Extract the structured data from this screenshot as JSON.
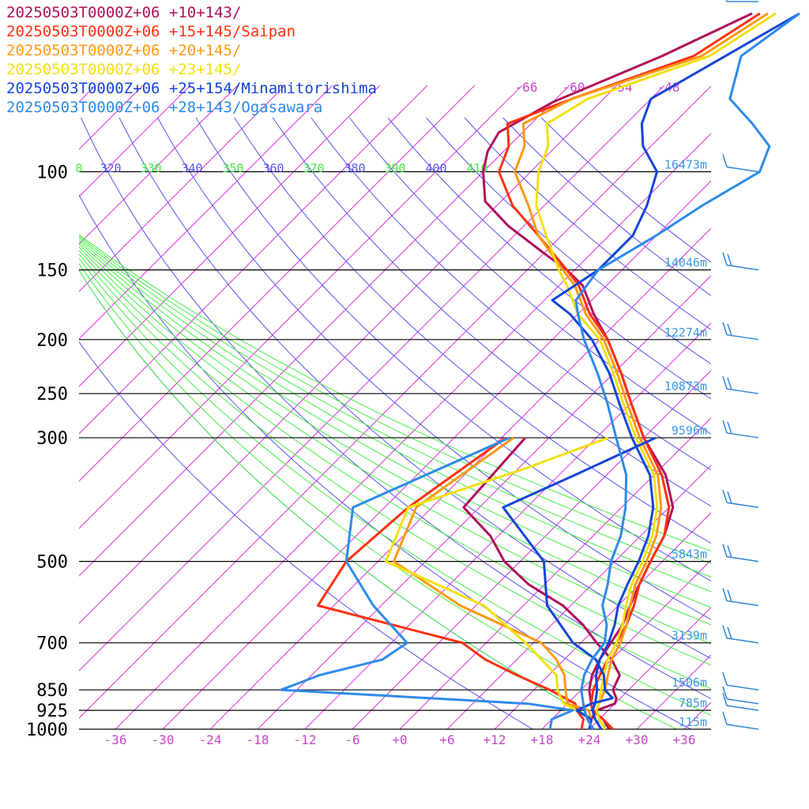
{
  "chart_data": {
    "type": "line",
    "title": "",
    "xlabel": "",
    "ylabel": "",
    "x_ticks": [
      "-36",
      "-30",
      "-24",
      "-18",
      "-12",
      "-6",
      "+0",
      "+6",
      "+12",
      "+18",
      "+24",
      "+30",
      "+36"
    ],
    "x_tick_values": [
      -36,
      -30,
      -24,
      -18,
      -12,
      -6,
      0,
      6,
      12,
      18,
      24,
      30,
      36
    ],
    "p_levels": [
      {
        "p": 100,
        "label": "100",
        "height": "16473m"
      },
      {
        "p": 150,
        "label": "150",
        "height": "14046m"
      },
      {
        "p": 200,
        "label": "200",
        "height": "12274m"
      },
      {
        "p": 250,
        "label": "250",
        "height": "10873m"
      },
      {
        "p": 300,
        "label": "300",
        "height": "9596m"
      },
      {
        "p": 500,
        "label": "500",
        "height": "5843m"
      },
      {
        "p": 700,
        "label": "700",
        "height": "3139m"
      },
      {
        "p": 850,
        "label": "850",
        "height": "1506m"
      },
      {
        "p": 925,
        "label": "925",
        "height": "785m"
      },
      {
        "p": 1000,
        "label": "1000",
        "height": "115m"
      }
    ],
    "theta_labels": [
      "0",
      "320",
      "330",
      "340",
      "350",
      "360",
      "370",
      "380",
      "390",
      "400",
      "410"
    ],
    "skewed_temp_labels": [
      "-66",
      "-60",
      "-54",
      "-48"
    ],
    "colors": {
      "background": "#ffffff",
      "isobar": "#000000",
      "isotherm": "#dd33dd",
      "dry_adiabat": "#5555ee",
      "moist_adiabat": "#44ee44",
      "height_label": "#3a9ae8",
      "axis_tick": "#cc44cc",
      "barb": "#2d86d8"
    },
    "series": [
      {
        "name": "20250503T0000Z+06 +10+143/",
        "color": "#b0105a",
        "temp": [
          [
            1000,
            26.5
          ],
          [
            960,
            24.5
          ],
          [
            925,
            22
          ],
          [
            900,
            21
          ],
          [
            850,
            19
          ],
          [
            800,
            17.5
          ],
          [
            750,
            16.5
          ],
          [
            700,
            15.8
          ],
          [
            650,
            15
          ],
          [
            600,
            13.5
          ],
          [
            550,
            12
          ],
          [
            500,
            10.5
          ],
          [
            450,
            9
          ],
          [
            400,
            6.5
          ],
          [
            350,
            1.5
          ],
          [
            300,
            -6
          ],
          [
            260,
            -12
          ],
          [
            230,
            -17
          ],
          [
            200,
            -23
          ],
          [
            180,
            -28
          ],
          [
            160,
            -33
          ],
          [
            150,
            -37
          ],
          [
            140,
            -42
          ],
          [
            125,
            -50
          ],
          [
            113,
            -56
          ],
          [
            100,
            -60
          ],
          [
            92,
            -62
          ],
          [
            85,
            -63
          ],
          [
            75,
            -60
          ],
          [
            62,
            -52
          ],
          [
            52,
            -46
          ]
        ],
        "dew": [
          [
            1000,
            24
          ],
          [
            960,
            23
          ],
          [
            925,
            22.5
          ],
          [
            900,
            24
          ],
          [
            880,
            23.5
          ],
          [
            850,
            22
          ],
          [
            800,
            21
          ],
          [
            750,
            18
          ],
          [
            700,
            14
          ],
          [
            650,
            10
          ],
          [
            600,
            5
          ],
          [
            550,
            -2
          ],
          [
            500,
            -8
          ],
          [
            450,
            -13
          ],
          [
            400,
            -20
          ],
          [
            300,
            -21
          ]
        ]
      },
      {
        "name": "20250503T0000Z+06 +15+145/Saipan",
        "color": "#ff3010",
        "temp": [
          [
            1000,
            27
          ],
          [
            960,
            24.5
          ],
          [
            925,
            22
          ],
          [
            900,
            21
          ],
          [
            850,
            19.5
          ],
          [
            800,
            18.5
          ],
          [
            750,
            17.5
          ],
          [
            700,
            16.5
          ],
          [
            650,
            15.5
          ],
          [
            600,
            14
          ],
          [
            550,
            12
          ],
          [
            500,
            10.5
          ],
          [
            450,
            9
          ],
          [
            400,
            6
          ],
          [
            350,
            1
          ],
          [
            300,
            -6
          ],
          [
            260,
            -12
          ],
          [
            230,
            -17
          ],
          [
            200,
            -23
          ],
          [
            180,
            -28.5
          ],
          [
            160,
            -33.5
          ],
          [
            150,
            -37
          ],
          [
            130,
            -45
          ],
          [
            115,
            -52
          ],
          [
            100,
            -58
          ],
          [
            90,
            -60
          ],
          [
            82,
            -63
          ],
          [
            74,
            -58
          ],
          [
            62,
            -48
          ],
          [
            52,
            -45
          ]
        ],
        "dew": [
          [
            1000,
            23
          ],
          [
            960,
            22
          ],
          [
            925,
            20
          ],
          [
            900,
            19
          ],
          [
            850,
            14
          ],
          [
            800,
            8
          ],
          [
            750,
            2
          ],
          [
            700,
            -3
          ],
          [
            600,
            -26
          ],
          [
            500,
            -28
          ],
          [
            400,
            -27
          ],
          [
            300,
            -23.5
          ]
        ]
      },
      {
        "name": "20250503T0000Z+06 +20+145/",
        "color": "#ff9912",
        "temp": [
          [
            1000,
            26
          ],
          [
            960,
            24
          ],
          [
            925,
            22.5
          ],
          [
            900,
            22
          ],
          [
            850,
            21
          ],
          [
            800,
            19.5
          ],
          [
            750,
            18
          ],
          [
            700,
            17
          ],
          [
            650,
            15.5
          ],
          [
            600,
            13.5
          ],
          [
            550,
            11.5
          ],
          [
            500,
            10
          ],
          [
            450,
            8
          ],
          [
            400,
            5
          ],
          [
            350,
            0.5
          ],
          [
            300,
            -6.5
          ],
          [
            260,
            -12.5
          ],
          [
            230,
            -17.5
          ],
          [
            200,
            -23.5
          ],
          [
            180,
            -29
          ],
          [
            160,
            -34
          ],
          [
            150,
            -37.5
          ],
          [
            130,
            -45
          ],
          [
            115,
            -50
          ],
          [
            100,
            -56
          ],
          [
            90,
            -58
          ],
          [
            82,
            -61
          ],
          [
            74,
            -58
          ],
          [
            62,
            -47
          ],
          [
            52,
            -44
          ]
        ],
        "dew": [
          [
            1000,
            24
          ],
          [
            960,
            23
          ],
          [
            925,
            21.5
          ],
          [
            900,
            18
          ],
          [
            850,
            16
          ],
          [
            800,
            14
          ],
          [
            750,
            11
          ],
          [
            700,
            7
          ],
          [
            600,
            -8
          ],
          [
            500,
            -22
          ],
          [
            400,
            -26
          ],
          [
            300,
            -22.5
          ]
        ]
      },
      {
        "name": "20250503T0000Z+06 +23+145/",
        "color": "#f4e010",
        "temp": [
          [
            1000,
            26
          ],
          [
            960,
            24
          ],
          [
            925,
            22.5
          ],
          [
            900,
            22
          ],
          [
            850,
            20.5
          ],
          [
            800,
            19
          ],
          [
            750,
            17.5
          ],
          [
            700,
            16.5
          ],
          [
            650,
            15
          ],
          [
            600,
            13
          ],
          [
            550,
            11
          ],
          [
            500,
            9.5
          ],
          [
            450,
            7.5
          ],
          [
            400,
            4.5
          ],
          [
            350,
            0
          ],
          [
            300,
            -7
          ],
          [
            260,
            -13
          ],
          [
            230,
            -18
          ],
          [
            200,
            -24
          ],
          [
            180,
            -30
          ],
          [
            160,
            -35
          ],
          [
            150,
            -38
          ],
          [
            130,
            -44
          ],
          [
            115,
            -49
          ],
          [
            100,
            -53
          ],
          [
            90,
            -55
          ],
          [
            82,
            -58
          ],
          [
            74,
            -56
          ],
          [
            62,
            -46
          ],
          [
            52,
            -43
          ]
        ],
        "dew": [
          [
            1000,
            24
          ],
          [
            960,
            23
          ],
          [
            925,
            20
          ],
          [
            900,
            17.5
          ],
          [
            850,
            15
          ],
          [
            800,
            13
          ],
          [
            700,
            5
          ],
          [
            600,
            -5
          ],
          [
            500,
            -23
          ],
          [
            400,
            -27
          ],
          [
            340,
            -17
          ],
          [
            300,
            -10.5
          ]
        ]
      },
      {
        "name": "20250503T0000Z+06 +25+154/Minamitorishima",
        "color": "#1545d8",
        "temp": [
          [
            1000,
            25.5
          ],
          [
            960,
            23.5
          ],
          [
            925,
            22
          ],
          [
            900,
            21.5
          ],
          [
            850,
            20
          ],
          [
            800,
            18
          ],
          [
            750,
            16.5
          ],
          [
            700,
            15.5
          ],
          [
            650,
            14
          ],
          [
            600,
            12
          ],
          [
            550,
            10.5
          ],
          [
            500,
            9
          ],
          [
            450,
            7
          ],
          [
            400,
            4
          ],
          [
            350,
            -0.5
          ],
          [
            300,
            -7.5
          ],
          [
            260,
            -13.5
          ],
          [
            230,
            -18.5
          ],
          [
            200,
            -25
          ],
          [
            180,
            -31
          ],
          [
            170,
            -35
          ],
          [
            160,
            -34
          ],
          [
            150,
            -33
          ],
          [
            130,
            -33
          ],
          [
            115,
            -35
          ],
          [
            100,
            -38
          ],
          [
            90,
            -43
          ],
          [
            82,
            -46
          ],
          [
            74,
            -48
          ],
          [
            62,
            -44
          ],
          [
            52,
            -40
          ]
        ],
        "dew": [
          [
            1000,
            24
          ],
          [
            960,
            23
          ],
          [
            925,
            20
          ],
          [
            900,
            21
          ],
          [
            880,
            23
          ],
          [
            850,
            21
          ],
          [
            800,
            19
          ],
          [
            750,
            16
          ],
          [
            700,
            11
          ],
          [
            600,
            3
          ],
          [
            500,
            -3
          ],
          [
            400,
            -15
          ],
          [
            350,
            -10
          ],
          [
            300,
            -4.5
          ]
        ]
      },
      {
        "name": "20250503T0000Z+06 +28+143/Ogasawara",
        "color": "#2e8ae8",
        "temp": [
          [
            1000,
            24.5
          ],
          [
            960,
            22.5
          ],
          [
            925,
            21
          ],
          [
            900,
            20
          ],
          [
            850,
            18
          ],
          [
            800,
            16.5
          ],
          [
            750,
            15.5
          ],
          [
            700,
            15
          ],
          [
            650,
            13
          ],
          [
            600,
            10
          ],
          [
            550,
            8
          ],
          [
            500,
            5.5
          ],
          [
            450,
            3.5
          ],
          [
            400,
            0.5
          ],
          [
            350,
            -3.5
          ],
          [
            300,
            -9.5
          ],
          [
            260,
            -15
          ],
          [
            230,
            -20
          ],
          [
            200,
            -26
          ],
          [
            180,
            -30
          ],
          [
            170,
            -32
          ],
          [
            160,
            -32.5
          ],
          [
            150,
            -33
          ],
          [
            130,
            -30
          ],
          [
            115,
            -28
          ],
          [
            100,
            -25
          ],
          [
            90,
            -27
          ],
          [
            82,
            -32
          ],
          [
            74,
            -38
          ],
          [
            62,
            -42
          ],
          [
            52,
            -40
          ]
        ],
        "dew": [
          [
            1000,
            19
          ],
          [
            960,
            18
          ],
          [
            925,
            19.5
          ],
          [
            900,
            13
          ],
          [
            850,
            -20
          ],
          [
            800,
            -17
          ],
          [
            750,
            -11
          ],
          [
            700,
            -10
          ],
          [
            600,
            -19
          ],
          [
            500,
            -28
          ],
          [
            400,
            -34
          ],
          [
            300,
            -23
          ]
        ]
      }
    ],
    "wind_barb_levels": [
      70,
      100,
      150,
      200,
      250,
      300,
      400,
      500,
      600,
      700,
      850,
      900,
      925,
      1000
    ]
  }
}
